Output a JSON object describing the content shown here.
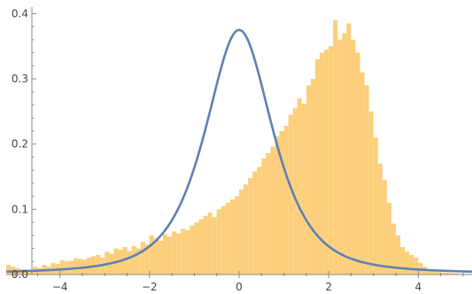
{
  "chart_data": {
    "type": "histogram",
    "title": "",
    "xlabel": "",
    "ylabel": "",
    "xlim": [
      -5.2,
      5.2
    ],
    "ylim": [
      0,
      0.41
    ],
    "x_ticks": [
      -4,
      -2,
      0,
      2,
      4
    ],
    "x_tick_labels": [
      "−4",
      "−2",
      "0",
      "2",
      "4"
    ],
    "y_ticks": [
      0.0,
      0.1,
      0.2,
      0.3,
      0.4
    ],
    "y_tick_labels": [
      "0.0",
      "0.1",
      "0.2",
      "0.3",
      "0.4"
    ],
    "grid": false,
    "legend": "none",
    "series": [
      {
        "kind": "histogram",
        "bin_width": 0.1,
        "bin_starts_from": -5.2,
        "values": [
          0.015,
          0.012,
          0.01,
          0.008,
          0.007,
          0.006,
          0.012,
          0.01,
          0.015,
          0.012,
          0.018,
          0.016,
          0.022,
          0.02,
          0.021,
          0.025,
          0.024,
          0.023,
          0.026,
          0.028,
          0.03,
          0.026,
          0.035,
          0.032,
          0.04,
          0.038,
          0.042,
          0.036,
          0.044,
          0.04,
          0.05,
          0.046,
          0.06,
          0.055,
          0.052,
          0.062,
          0.058,
          0.066,
          0.063,
          0.07,
          0.068,
          0.075,
          0.08,
          0.085,
          0.09,
          0.095,
          0.088,
          0.1,
          0.105,
          0.11,
          0.115,
          0.12,
          0.13,
          0.138,
          0.148,
          0.158,
          0.165,
          0.178,
          0.186,
          0.196,
          0.212,
          0.22,
          0.228,
          0.245,
          0.255,
          0.27,
          0.262,
          0.29,
          0.3,
          0.33,
          0.34,
          0.345,
          0.35,
          0.39,
          0.36,
          0.37,
          0.385,
          0.36,
          0.34,
          0.31,
          0.29,
          0.25,
          0.21,
          0.17,
          0.145,
          0.11,
          0.078,
          0.06,
          0.042,
          0.035,
          0.03,
          0.026,
          0.018,
          0.012,
          0.008,
          0.006,
          0.004,
          0.003,
          0.003,
          0.002,
          0.002,
          0.001,
          0.001,
          0.001
        ],
        "color": "#fdcf7c"
      },
      {
        "kind": "line",
        "description": "density curve",
        "peak_x": 0.0,
        "peak_y": 0.375,
        "x": [
          -5.2,
          -4.8,
          -4.4,
          -4.0,
          -3.6,
          -3.2,
          -2.8,
          -2.4,
          -2.0,
          -1.6,
          -1.2,
          -0.8,
          -0.4,
          0.0,
          0.4,
          0.8,
          1.2,
          1.6,
          2.0,
          2.4,
          2.8,
          3.2,
          3.6,
          4.0,
          4.4,
          4.8,
          5.2
        ],
        "y": [
          0.002,
          0.003,
          0.004,
          0.006,
          0.009,
          0.013,
          0.021,
          0.034,
          0.055,
          0.092,
          0.151,
          0.24,
          0.333,
          0.375,
          0.333,
          0.24,
          0.151,
          0.092,
          0.055,
          0.034,
          0.021,
          0.013,
          0.009,
          0.006,
          0.004,
          0.003,
          0.002
        ],
        "color": "#5e81b5"
      }
    ],
    "colors": {
      "histogram": "#fdcf7c",
      "curve": "#5e81b5",
      "axis": "#888888",
      "tick_text": "#444444"
    }
  }
}
